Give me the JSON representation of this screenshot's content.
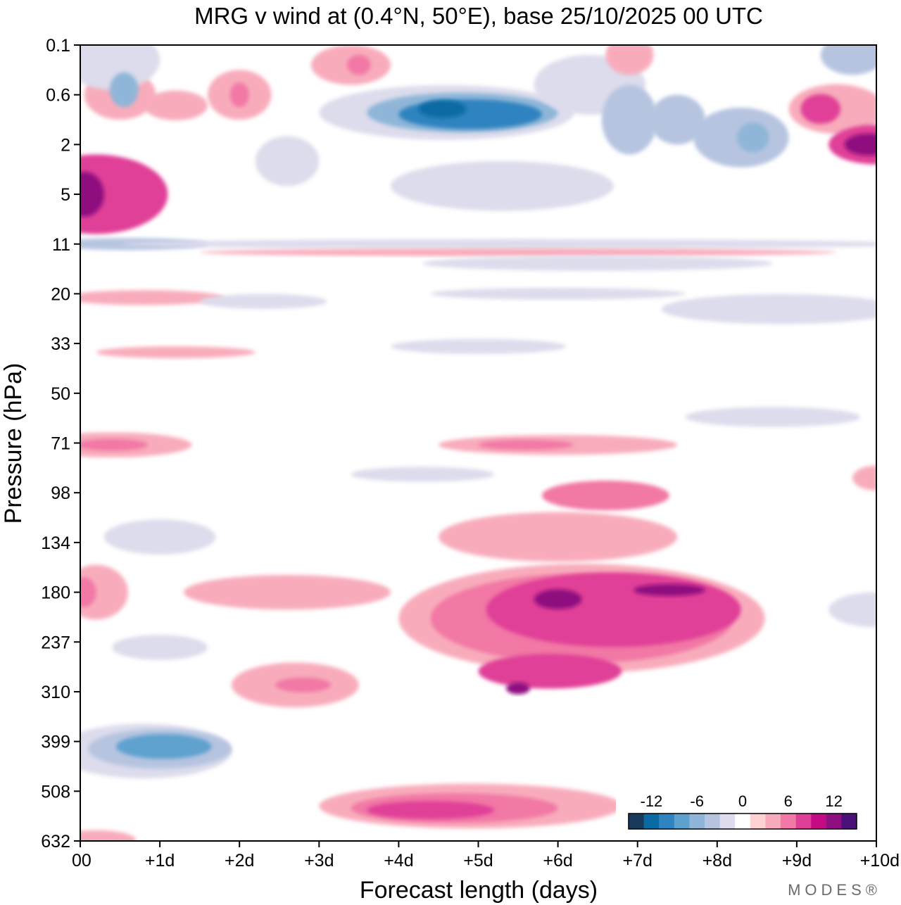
{
  "chart_data": {
    "type": "heatmap",
    "title": "MRG v wind at (0.4°N, 50°E),  base 25/10/2025  00 UTC",
    "xlabel": "Forecast length (days)",
    "ylabel": "Pressure (hPa)",
    "x_ticks": [
      "00",
      "+1d",
      "+2d",
      "+3d",
      "+4d",
      "+5d",
      "+6d",
      "+7d",
      "+8d",
      "+9d",
      "+10d"
    ],
    "y_ticks": [
      "0.1",
      "0.6",
      "2",
      "5",
      "11",
      "20",
      "33",
      "50",
      "71",
      "98",
      "134",
      "180",
      "237",
      "310",
      "399",
      "508",
      "632"
    ],
    "xlim_days": [
      0,
      10
    ],
    "colorbar": {
      "tick_labels": [
        "-12",
        "-6",
        "0",
        "6",
        "12"
      ],
      "level_step": 2,
      "colors": [
        "#1a3a5c",
        "#0b6aa3",
        "#2f83c0",
        "#5ea1cf",
        "#8fb6d8",
        "#b6c4e0",
        "#dcdcec",
        "#ffffff",
        "#fcd2d2",
        "#f8acbb",
        "#f278a5",
        "#e03f97",
        "#c40a84",
        "#8e0f7f",
        "#4a1178"
      ]
    },
    "regions": [
      {
        "day": 0.5,
        "level": 0.6,
        "dd": 0.45,
        "dl": 0.5,
        "value": 3
      },
      {
        "day": 0.2,
        "level": 5,
        "dd": 0.9,
        "dl": 0.8,
        "value": 8
      },
      {
        "day": 0.05,
        "level": 5,
        "dd": 0.25,
        "dl": 0.45,
        "value": 11
      },
      {
        "day": 0.4,
        "level": 0.25,
        "dd": 0.6,
        "dl": 0.6,
        "value": -3
      },
      {
        "day": 0.55,
        "level": 0.55,
        "dd": 0.18,
        "dl": 0.35,
        "value": -6
      },
      {
        "day": 1.2,
        "level": 0.9,
        "dd": 0.4,
        "dl": 0.3,
        "value": 3
      },
      {
        "day": 2.0,
        "level": 0.6,
        "dd": 0.4,
        "dl": 0.5,
        "value": 3
      },
      {
        "day": 2.0,
        "level": 0.6,
        "dd": 0.12,
        "dl": 0.25,
        "value": 6
      },
      {
        "day": 3.4,
        "level": 0.3,
        "dd": 0.5,
        "dl": 0.4,
        "value": 3
      },
      {
        "day": 3.5,
        "level": 0.3,
        "dd": 0.15,
        "dl": 0.2,
        "value": 6
      },
      {
        "day": 4.6,
        "level": 1.1,
        "dd": 1.6,
        "dl": 0.55,
        "value": -3
      },
      {
        "day": 4.8,
        "level": 1.1,
        "dd": 1.2,
        "dl": 0.4,
        "value": -7
      },
      {
        "day": 4.9,
        "level": 1.15,
        "dd": 0.9,
        "dl": 0.3,
        "value": -10
      },
      {
        "day": 4.55,
        "level": 1.0,
        "dd": 0.3,
        "dl": 0.18,
        "value": -13
      },
      {
        "day": 6.4,
        "level": 0.5,
        "dd": 0.7,
        "dl": 0.6,
        "value": -3
      },
      {
        "day": 6.9,
        "level": 1.3,
        "dd": 0.35,
        "dl": 0.7,
        "value": -4
      },
      {
        "day": 7.5,
        "level": 1.3,
        "dd": 0.35,
        "dl": 0.5,
        "value": -4
      },
      {
        "day": 8.3,
        "level": 1.8,
        "dd": 0.6,
        "dl": 0.6,
        "value": -4
      },
      {
        "day": 8.45,
        "level": 1.8,
        "dd": 0.2,
        "dl": 0.3,
        "value": -7
      },
      {
        "day": 9.5,
        "level": 1.0,
        "dd": 0.6,
        "dl": 0.5,
        "value": 4
      },
      {
        "day": 9.3,
        "level": 1.0,
        "dd": 0.25,
        "dl": 0.3,
        "value": 7
      },
      {
        "day": 10.0,
        "level": 2.0,
        "dd": 0.6,
        "dl": 0.4,
        "value": 7
      },
      {
        "day": 9.9,
        "level": 2.0,
        "dd": 0.3,
        "dl": 0.22,
        "value": 11
      },
      {
        "day": 6.9,
        "level": 0.2,
        "dd": 0.3,
        "dl": 0.4,
        "value": 4
      },
      {
        "day": 9.7,
        "level": 0.2,
        "dd": 0.4,
        "dl": 0.4,
        "value": -4
      },
      {
        "day": 5.3,
        "level": 4.5,
        "dd": 1.4,
        "dl": 0.5,
        "value": -3
      },
      {
        "day": 2.6,
        "level": 3.0,
        "dd": 0.4,
        "dl": 0.5,
        "value": -2
      },
      {
        "day": 0.6,
        "level": 11,
        "dd": 1.0,
        "dl": 0.12,
        "value": -5
      },
      {
        "day": 5.5,
        "level": 11,
        "dd": 5.0,
        "dl": 0.1,
        "value": -2
      },
      {
        "day": 5.5,
        "level": 12.5,
        "dd": 4.0,
        "dl": 0.08,
        "value": 3
      },
      {
        "day": 6.5,
        "level": 14.5,
        "dd": 2.2,
        "dl": 0.15,
        "value": -3
      },
      {
        "day": 6.0,
        "level": 20,
        "dd": 1.6,
        "dl": 0.12,
        "value": -2
      },
      {
        "day": 0.8,
        "level": 21,
        "dd": 1.0,
        "dl": 0.15,
        "value": 3
      },
      {
        "day": 2.3,
        "level": 22,
        "dd": 0.8,
        "dl": 0.15,
        "value": -2
      },
      {
        "day": 8.8,
        "level": 24,
        "dd": 1.5,
        "dl": 0.3,
        "value": -3
      },
      {
        "day": 5.0,
        "level": 34,
        "dd": 1.1,
        "dl": 0.15,
        "value": -3
      },
      {
        "day": 1.2,
        "level": 36,
        "dd": 1.0,
        "dl": 0.12,
        "value": 3
      },
      {
        "day": 8.7,
        "level": 60,
        "dd": 1.1,
        "dl": 0.2,
        "value": -2
      },
      {
        "day": 0.4,
        "level": 72,
        "dd": 1.0,
        "dl": 0.25,
        "value": 3
      },
      {
        "day": 0.4,
        "level": 72,
        "dd": 0.45,
        "dl": 0.12,
        "value": 6
      },
      {
        "day": 6.0,
        "level": 72,
        "dd": 1.5,
        "dl": 0.2,
        "value": 3
      },
      {
        "day": 5.6,
        "level": 72,
        "dd": 0.6,
        "dl": 0.1,
        "value": 6
      },
      {
        "day": 4.3,
        "level": 88,
        "dd": 0.9,
        "dl": 0.15,
        "value": -2
      },
      {
        "day": 1.0,
        "level": 130,
        "dd": 0.7,
        "dl": 0.35,
        "value": -3
      },
      {
        "day": 1.0,
        "level": 245,
        "dd": 0.6,
        "dl": 0.25,
        "value": -2
      },
      {
        "day": 0.8,
        "level": 420,
        "dd": 1.1,
        "dl": 0.55,
        "value": -3
      },
      {
        "day": 1.0,
        "level": 415,
        "dd": 0.9,
        "dl": 0.4,
        "value": -5
      },
      {
        "day": 1.05,
        "level": 410,
        "dd": 0.6,
        "dl": 0.25,
        "value": -8
      },
      {
        "day": 0.2,
        "level": 180,
        "dd": 0.4,
        "dl": 0.55,
        "value": 4
      },
      {
        "day": 0.05,
        "level": 180,
        "dd": 0.15,
        "dl": 0.3,
        "value": 6
      },
      {
        "day": 2.6,
        "level": 180,
        "dd": 1.3,
        "dl": 0.35,
        "value": 3
      },
      {
        "day": 2.7,
        "level": 300,
        "dd": 0.8,
        "dl": 0.45,
        "value": 3
      },
      {
        "day": 2.8,
        "level": 300,
        "dd": 0.35,
        "dl": 0.15,
        "value": 6
      },
      {
        "day": 6.0,
        "level": 130,
        "dd": 1.5,
        "dl": 0.5,
        "value": 3
      },
      {
        "day": 6.3,
        "level": 210,
        "dd": 2.3,
        "dl": 1.1,
        "value": 3
      },
      {
        "day": 6.3,
        "level": 210,
        "dd": 1.9,
        "dl": 0.9,
        "value": 5
      },
      {
        "day": 6.6,
        "level": 100,
        "dd": 0.8,
        "dl": 0.3,
        "value": 5
      },
      {
        "day": 6.7,
        "level": 200,
        "dd": 1.6,
        "dl": 0.75,
        "value": 8
      },
      {
        "day": 5.9,
        "level": 280,
        "dd": 0.9,
        "dl": 0.35,
        "value": 8
      },
      {
        "day": 6.0,
        "level": 188,
        "dd": 0.3,
        "dl": 0.2,
        "value": 11
      },
      {
        "day": 7.4,
        "level": 178,
        "dd": 0.45,
        "dl": 0.12,
        "value": 11
      },
      {
        "day": 5.5,
        "level": 305,
        "dd": 0.15,
        "dl": 0.12,
        "value": 11
      },
      {
        "day": 4.9,
        "level": 545,
        "dd": 1.9,
        "dl": 0.45,
        "value": 3
      },
      {
        "day": 4.7,
        "level": 550,
        "dd": 1.3,
        "dl": 0.3,
        "value": 5
      },
      {
        "day": 4.4,
        "level": 555,
        "dd": 0.8,
        "dl": 0.18,
        "value": 8
      },
      {
        "day": 0.2,
        "level": 630,
        "dd": 0.5,
        "dl": 0.2,
        "value": 3
      },
      {
        "day": 10.0,
        "level": 200,
        "dd": 0.6,
        "dl": 0.35,
        "value": -3
      },
      {
        "day": 10.0,
        "level": 90,
        "dd": 0.3,
        "dl": 0.25,
        "value": 3
      }
    ]
  },
  "brand": "MODES®"
}
